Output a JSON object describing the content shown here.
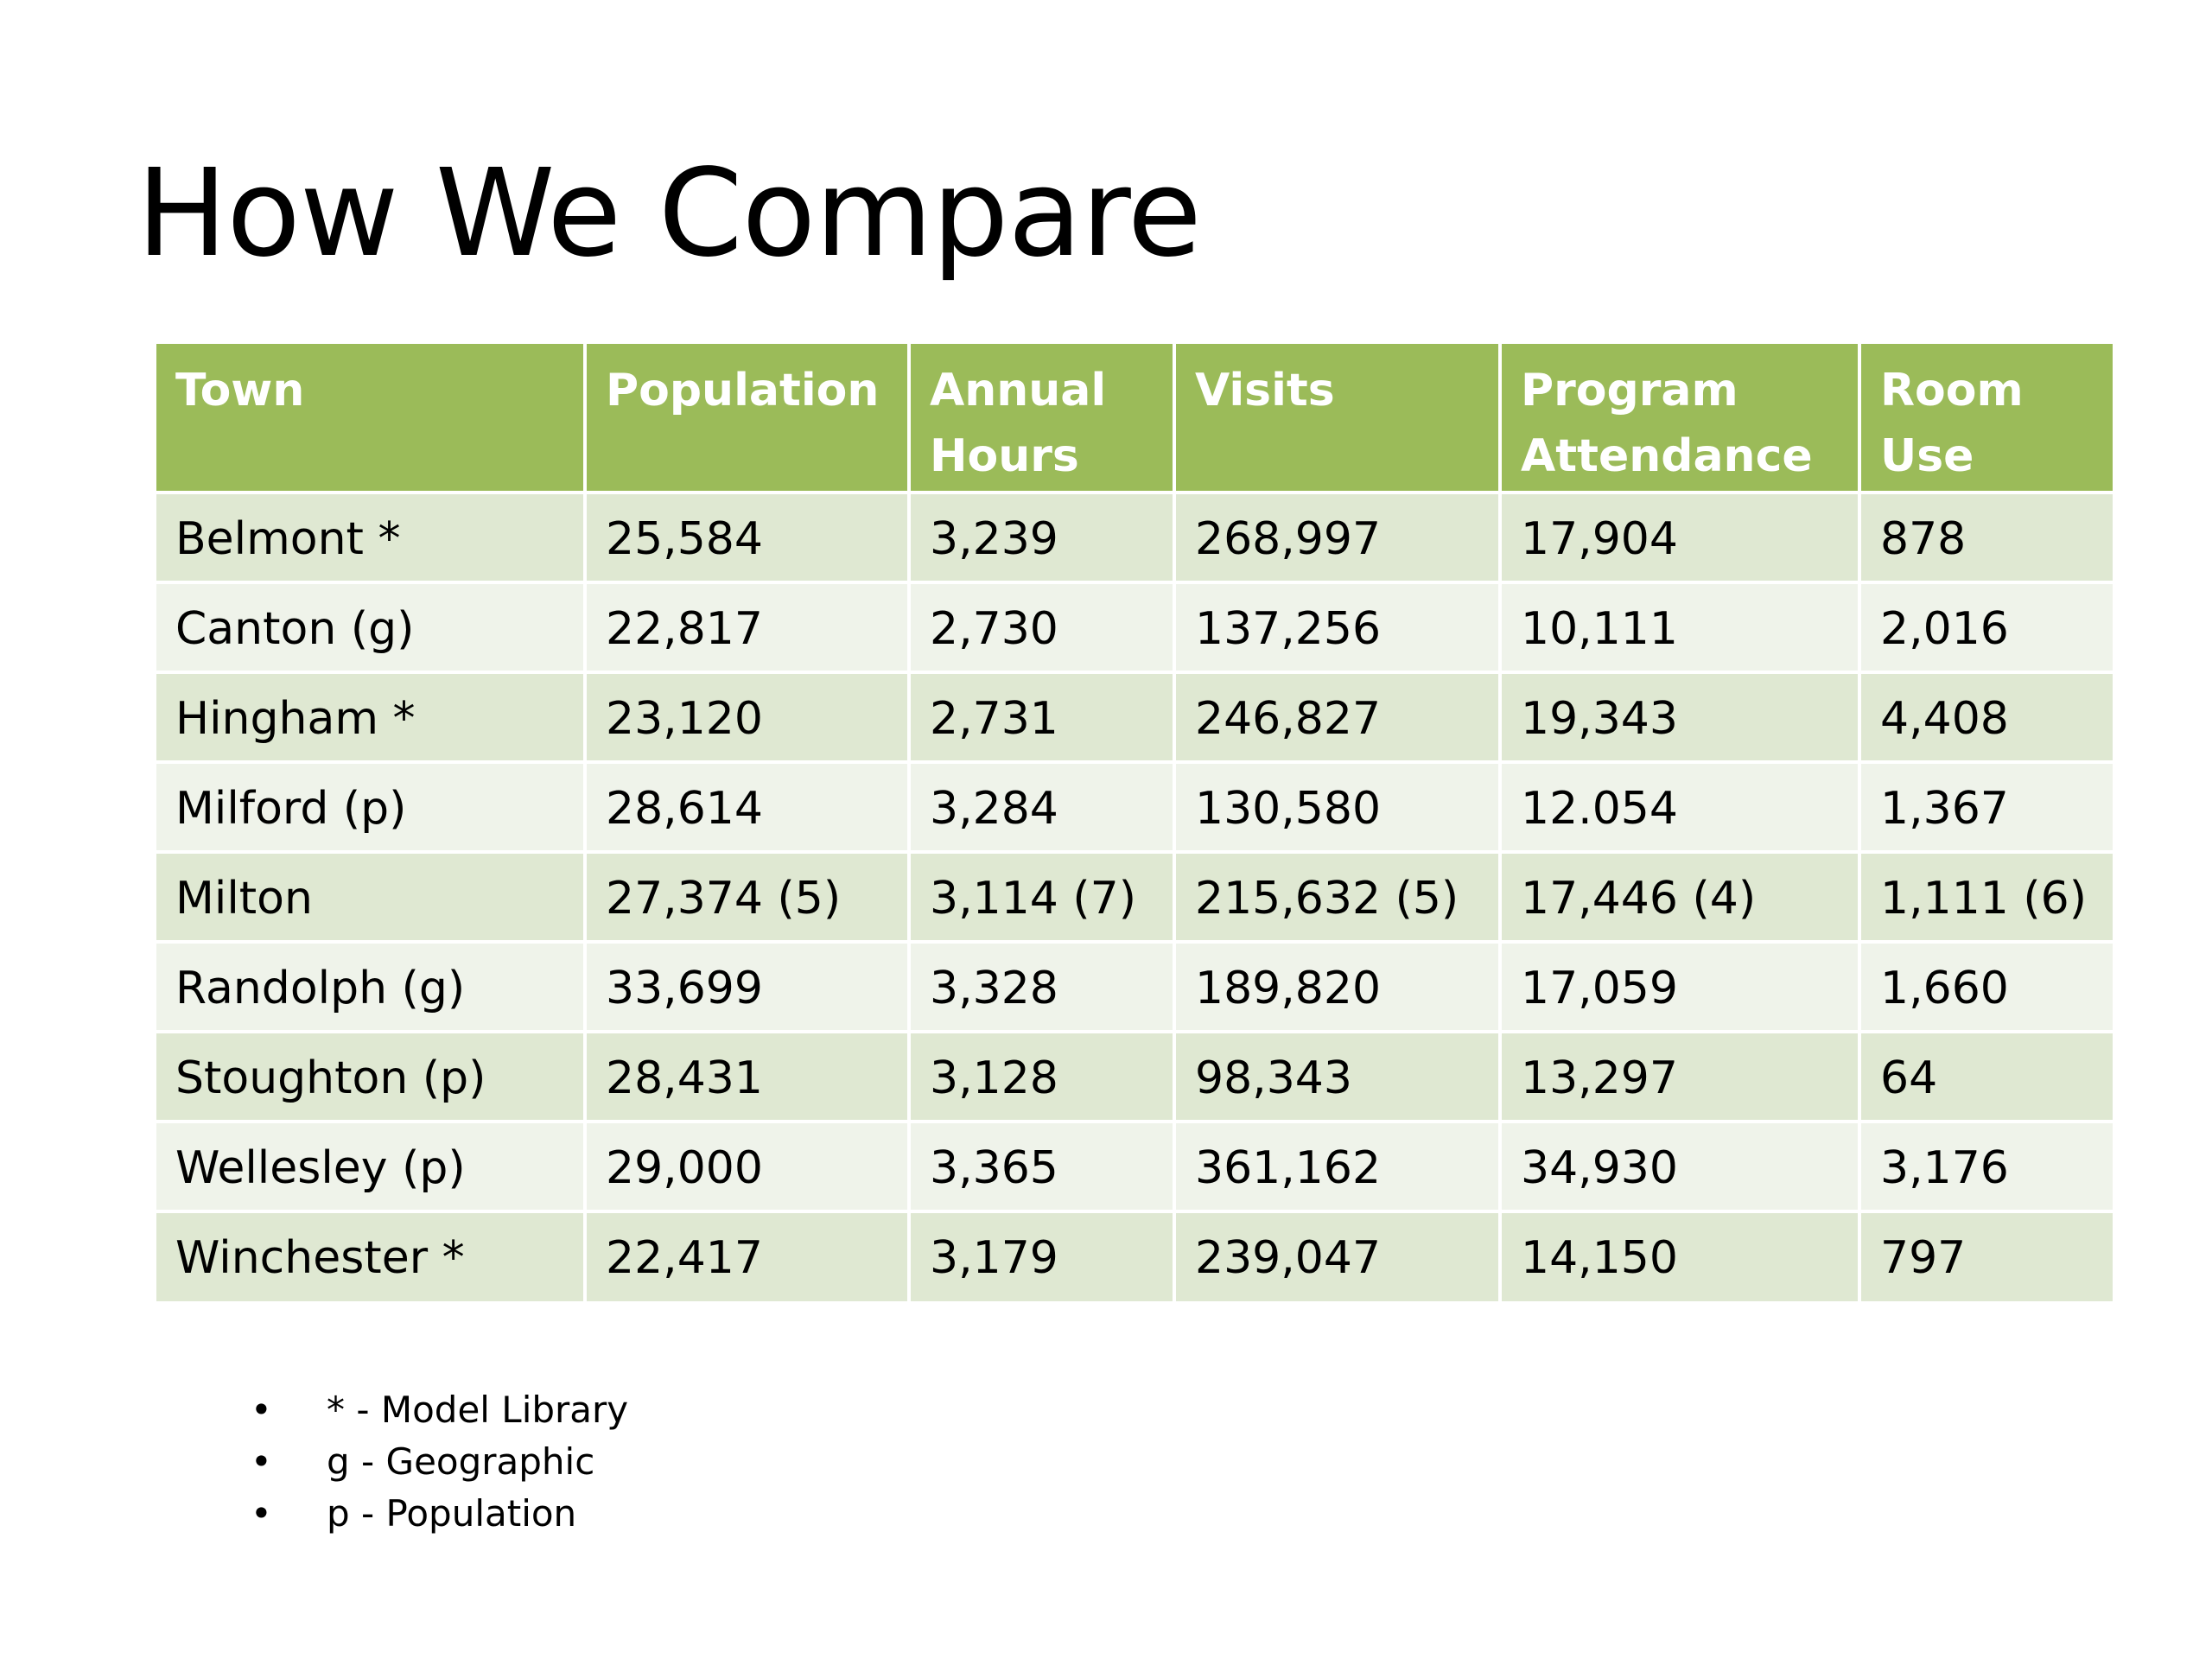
{
  "title": "How We Compare",
  "table": {
    "headers": [
      "Town",
      "Population",
      "Annual Hours",
      "Visits",
      "Program Attendance",
      "Room Use"
    ],
    "rows": [
      [
        "Belmont *",
        "25,584",
        "3,239",
        "268,997",
        "17,904",
        "878"
      ],
      [
        "Canton (g)",
        "22,817",
        "2,730",
        "137,256",
        "10,111",
        "2,016"
      ],
      [
        "Hingham *",
        "23,120",
        "2,731",
        "246,827",
        "19,343",
        "4,408"
      ],
      [
        "Milford (p)",
        "28,614",
        "3,284",
        "130,580",
        "12.054",
        "1,367"
      ],
      [
        "Milton",
        "27,374 (5)",
        "3,114 (7)",
        "215,632 (5)",
        "17,446 (4)",
        "1,111 (6)"
      ],
      [
        "Randolph (g)",
        "33,699",
        "3,328",
        "189,820",
        "17,059",
        "1,660"
      ],
      [
        "Stoughton (p)",
        "28,431",
        "3,128",
        "98,343",
        "13,297",
        "64"
      ],
      [
        "Wellesley (p)",
        "29,000",
        "3,365",
        "361,162",
        "34,930",
        "3,176"
      ],
      [
        "Winchester *",
        "22,417",
        "3,179",
        "239,047",
        "14,150",
        "797"
      ]
    ]
  },
  "legend": {
    "bullet": "•",
    "items": [
      "* - Model Library",
      "g - Geographic",
      "p - Population"
    ]
  },
  "colors": {
    "header_background": "#9bbb59",
    "header_text": "#ffffff",
    "row_odd": "#dfe8d2",
    "row_even": "#eff3ea"
  }
}
